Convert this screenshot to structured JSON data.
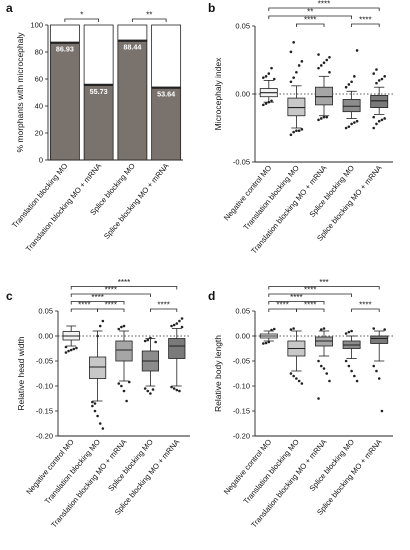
{
  "chart_data": [
    {
      "panel": "a",
      "type": "bar",
      "stacked": true,
      "ylabel": "% morphants with microcephaly",
      "ylim": [
        0,
        100
      ],
      "yticks": [
        0,
        20,
        40,
        60,
        80,
        100
      ],
      "categories": [
        "Translation blocking MO",
        "Translation blocking MO + mRNA",
        "Splice blocking MO",
        "Splice blocking MO + mRNA"
      ],
      "values": [
        86.93,
        55.73,
        88.44,
        53.64
      ],
      "value_labels": [
        "86.93",
        "55.73",
        "88.44",
        "53.64"
      ],
      "colors": {
        "microcephaly": "#7a726d",
        "normal": "#ffffff"
      },
      "significance": [
        {
          "from": 0,
          "to": 1,
          "label": "*"
        },
        {
          "from": 2,
          "to": 3,
          "label": "**"
        }
      ]
    },
    {
      "panel": "b",
      "type": "box",
      "ylabel": "Microcephaly index",
      "ylim": [
        -0.05,
        0.05
      ],
      "yticks": [
        -0.05,
        0.0,
        0.05
      ],
      "ytick_labels": [
        "-0.05",
        "0.00",
        "0.05"
      ],
      "zero_line": "dotted",
      "categories": [
        "Negative control MO",
        "Translation blocking MO",
        "Translation blocking MO + mRNA",
        "Splice blocking MO",
        "Splice blocking MO + mRNA"
      ],
      "box_colors": [
        "#f2f2f2",
        "#c8c8c8",
        "#a6a6a6",
        "#8c8c8c",
        "#7a7a7a"
      ],
      "boxes": [
        {
          "min": -0.006,
          "q1": -0.002,
          "median": 0.001,
          "q3": 0.004,
          "max": 0.01,
          "outliers": [
            -0.008,
            -0.007,
            -0.006,
            -0.005,
            0.011,
            0.012,
            0.013,
            0.015,
            0.019
          ]
        },
        {
          "min": -0.025,
          "q1": -0.016,
          "median": -0.01,
          "q3": -0.003,
          "max": 0.006,
          "outliers": [
            -0.03,
            -0.028,
            -0.027,
            -0.027,
            -0.026,
            0.009,
            0.012,
            0.016,
            0.021,
            0.024,
            0.031,
            0.038
          ]
        },
        {
          "min": -0.016,
          "q1": -0.008,
          "median": -0.002,
          "q3": 0.005,
          "max": 0.013,
          "outliers": [
            -0.019,
            -0.018,
            -0.017,
            -0.017,
            0.016,
            0.019,
            0.021,
            0.023,
            0.025,
            0.027,
            0.029
          ]
        },
        {
          "min": -0.018,
          "q1": -0.013,
          "median": -0.009,
          "q3": -0.004,
          "max": 0.002,
          "outliers": [
            -0.025,
            -0.024,
            -0.022,
            -0.021,
            -0.02,
            0.005,
            0.007,
            0.009,
            0.013,
            0.032
          ]
        },
        {
          "min": -0.015,
          "q1": -0.01,
          "median": -0.005,
          "q3": -0.001,
          "max": 0.005,
          "outliers": [
            -0.025,
            -0.022,
            -0.02,
            -0.019,
            -0.018,
            -0.017,
            0.008,
            0.01,
            0.011,
            0.013,
            0.015,
            0.018
          ]
        }
      ],
      "significance": [
        {
          "from": 0,
          "to": 4,
          "label": "****",
          "level": 3
        },
        {
          "from": 0,
          "to": 3,
          "label": "**",
          "level": 2
        },
        {
          "from": 1,
          "to": 2,
          "label": "****",
          "level": 1
        },
        {
          "from": 3,
          "to": 4,
          "label": "****",
          "level": 1
        }
      ]
    },
    {
      "panel": "c",
      "type": "box",
      "ylabel": "Relative head width",
      "ylim": [
        -0.2,
        0.05
      ],
      "yticks": [
        -0.2,
        -0.15,
        -0.1,
        -0.05,
        0.0,
        0.05
      ],
      "ytick_labels": [
        "-0.20",
        "-0.15",
        "-0.10",
        "-0.05",
        "0.00",
        "0.05"
      ],
      "zero_line": "dotted",
      "categories": [
        "Negative control MO",
        "Translation blocking MO",
        "Translation blocking MO + mRNA",
        "Splice blocking MO",
        "Splice blocking MO + mRNA"
      ],
      "box_colors": [
        "#f2f2f2",
        "#c8c8c8",
        "#a6a6a6",
        "#8c8c8c",
        "#7a7a7a"
      ],
      "boxes": [
        {
          "min": -0.02,
          "q1": -0.008,
          "median": 0.0,
          "q3": 0.009,
          "max": 0.02,
          "outliers": [
            -0.033,
            -0.03,
            -0.028,
            -0.026,
            -0.024,
            -0.022
          ]
        },
        {
          "min": -0.13,
          "q1": -0.085,
          "median": -0.062,
          "q3": -0.042,
          "max": 0.01,
          "outliers": [
            -0.14,
            -0.15,
            -0.16,
            -0.175,
            -0.185,
            -0.132,
            -0.135,
            0.0,
            0.02,
            0.03
          ]
        },
        {
          "min": -0.09,
          "q1": -0.05,
          "median": -0.028,
          "q3": -0.01,
          "max": 0.01,
          "outliers": [
            -0.095,
            -0.1,
            -0.11,
            -0.13,
            -0.092,
            0.014,
            0.018,
            0.02
          ]
        },
        {
          "min": -0.1,
          "q1": -0.07,
          "median": -0.05,
          "q3": -0.03,
          "max": -0.005,
          "outliers": [
            -0.105,
            -0.11,
            -0.115,
            -0.107,
            -0.012,
            -0.01,
            -0.008,
            -0.004
          ]
        },
        {
          "min": -0.1,
          "q1": -0.045,
          "median": -0.02,
          "q3": -0.005,
          "max": 0.015,
          "outliers": [
            -0.102,
            -0.105,
            -0.108,
            -0.11,
            0.018,
            0.02,
            0.022,
            0.025,
            0.03,
            0.035
          ]
        }
      ],
      "significance": [
        {
          "from": 0,
          "to": 4,
          "label": "****",
          "level": 4
        },
        {
          "from": 0,
          "to": 3,
          "label": "****",
          "level": 3
        },
        {
          "from": 0,
          "to": 2,
          "label": "****",
          "level": 2
        },
        {
          "from": 0,
          "to": 1,
          "label": "****",
          "level": 1
        },
        {
          "from": 1,
          "to": 2,
          "label": "****",
          "level": 1
        },
        {
          "from": 3,
          "to": 4,
          "label": "****",
          "level": 1
        }
      ]
    },
    {
      "panel": "d",
      "type": "box",
      "ylabel": "Relative body length",
      "ylim": [
        -0.2,
        0.05
      ],
      "yticks": [
        -0.2,
        -0.15,
        -0.1,
        -0.05,
        0.0,
        0.05
      ],
      "ytick_labels": [
        "-0.20",
        "-0.15",
        "-0.10",
        "-0.05",
        "0.00",
        "0.05"
      ],
      "zero_line": "dotted",
      "categories": [
        "Negative control MO",
        "Translation blocking MO",
        "Translation blocking MO + mRNA",
        "Splice blocking MO",
        "Splice blocking MO + mRNA"
      ],
      "box_colors": [
        "#f2f2f2",
        "#c8c8c8",
        "#a6a6a6",
        "#8c8c8c",
        "#7a7a7a"
      ],
      "boxes": [
        {
          "min": -0.01,
          "q1": -0.004,
          "median": 0.0,
          "q3": 0.004,
          "max": 0.01,
          "outliers": [
            -0.015,
            -0.014,
            -0.012,
            0.012,
            0.014
          ]
        },
        {
          "min": -0.07,
          "q1": -0.04,
          "median": -0.025,
          "q3": -0.01,
          "max": 0.01,
          "outliers": [
            -0.075,
            -0.08,
            -0.085,
            -0.09,
            -0.095,
            0.013,
            0.015
          ]
        },
        {
          "min": -0.04,
          "q1": -0.02,
          "median": -0.01,
          "q3": -0.002,
          "max": 0.01,
          "outliers": [
            -0.05,
            -0.06,
            -0.065,
            -0.075,
            -0.09,
            -0.125,
            0.013,
            0.015
          ]
        },
        {
          "min": -0.045,
          "q1": -0.025,
          "median": -0.018,
          "q3": -0.01,
          "max": 0.0,
          "outliers": [
            -0.05,
            -0.06,
            -0.07,
            -0.08,
            -0.09,
            0.005,
            0.008,
            0.01
          ]
        },
        {
          "min": -0.05,
          "q1": -0.015,
          "median": -0.005,
          "q3": 0.0,
          "max": 0.01,
          "outliers": [
            -0.06,
            -0.07,
            -0.085,
            -0.15,
            0.013,
            0.015
          ]
        }
      ],
      "significance": [
        {
          "from": 0,
          "to": 4,
          "label": "***",
          "level": 4
        },
        {
          "from": 0,
          "to": 3,
          "label": "****",
          "level": 3
        },
        {
          "from": 0,
          "to": 2,
          "label": "****",
          "level": 2
        },
        {
          "from": 0,
          "to": 1,
          "label": "****",
          "level": 1
        },
        {
          "from": 1,
          "to": 2,
          "label": "****",
          "level": 1
        },
        {
          "from": 3,
          "to": 4,
          "label": "****",
          "level": 1
        }
      ]
    }
  ]
}
